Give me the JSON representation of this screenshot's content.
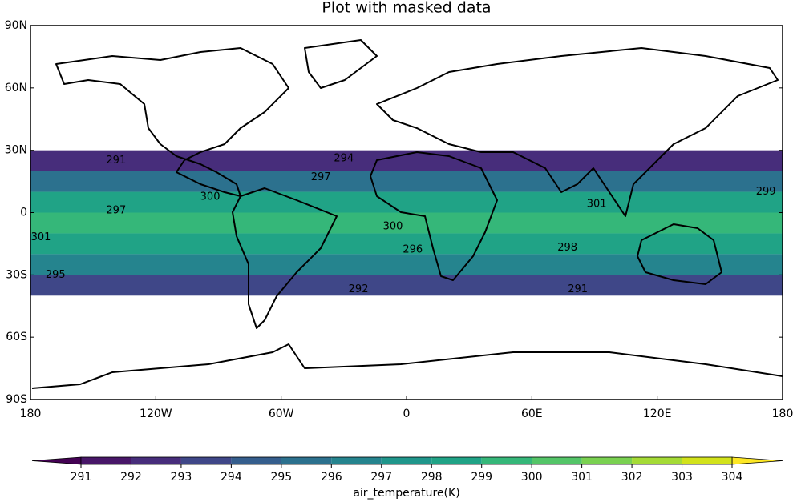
{
  "chart_data": {
    "type": "masked_map",
    "title": "Plot with masked data",
    "xlim": [
      -180,
      180
    ],
    "ylim": [
      -90,
      90
    ],
    "xticks": [
      {
        "value": -180,
        "label": "180"
      },
      {
        "value": -120,
        "label": "120W"
      },
      {
        "value": -60,
        "label": "60W"
      },
      {
        "value": 0,
        "label": "0"
      },
      {
        "value": 60,
        "label": "60E"
      },
      {
        "value": 120,
        "label": "120E"
      },
      {
        "value": 180,
        "label": "180"
      }
    ],
    "yticks": [
      {
        "value": 90,
        "label": "90N"
      },
      {
        "value": 60,
        "label": "60N"
      },
      {
        "value": 30,
        "label": "30N"
      },
      {
        "value": 0,
        "label": "0"
      },
      {
        "value": -30,
        "label": "30S"
      },
      {
        "value": -60,
        "label": "60S"
      },
      {
        "value": -90,
        "label": "90S"
      }
    ],
    "field": {
      "lat_edges": [
        30,
        20,
        10,
        0,
        -10,
        -20,
        -30,
        -40
      ],
      "values": [
        292.5,
        295.5,
        298.5,
        299.5,
        298.5,
        296.5,
        293.5
      ]
    },
    "contour_labels": [
      {
        "lon": -139,
        "lat": 25,
        "value": 291
      },
      {
        "lon": -139,
        "lat": 1,
        "value": 297
      },
      {
        "lon": -94,
        "lat": 7.5,
        "value": 300
      },
      {
        "lon": -41,
        "lat": 17,
        "value": 297
      },
      {
        "lon": -30,
        "lat": 26,
        "value": 294
      },
      {
        "lon": -6.5,
        "lat": -6.7,
        "value": 300
      },
      {
        "lon": -175,
        "lat": -12,
        "value": 301
      },
      {
        "lon": 3,
        "lat": -18,
        "value": 296
      },
      {
        "lon": 77,
        "lat": -17,
        "value": 298
      },
      {
        "lon": -168,
        "lat": -30,
        "value": 295
      },
      {
        "lon": -23,
        "lat": -37,
        "value": 292
      },
      {
        "lon": 82,
        "lat": -37,
        "value": 291
      },
      {
        "lon": 172,
        "lat": 10,
        "value": 299
      },
      {
        "lon": 91,
        "lat": 4,
        "value": 301
      }
    ],
    "colorbar": {
      "label": "air_temperature(K)",
      "ticks": [
        291,
        292,
        293,
        294,
        295,
        296,
        297,
        298,
        299,
        300,
        301,
        302,
        303,
        304
      ],
      "colors": [
        "#481668",
        "#472d7b",
        "#3f4788",
        "#355e8d",
        "#2c718e",
        "#25848e",
        "#1f968b",
        "#20a386",
        "#35b779",
        "#54c568",
        "#7ad151",
        "#a5db36",
        "#d2e21b"
      ],
      "under_color": "#440154",
      "over_color": "#fde725"
    }
  }
}
